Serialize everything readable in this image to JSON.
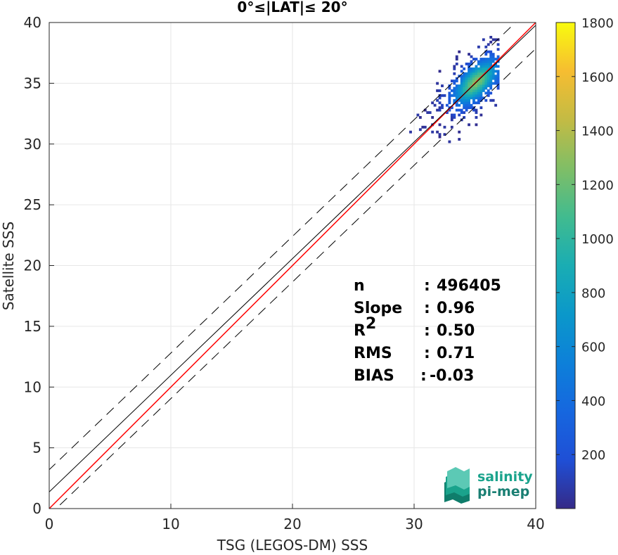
{
  "chart_data": {
    "type": "heatmap",
    "title": "0°≤|LAT|≤ 20°",
    "xlabel": "TSG (LEGOS-DM) SSS",
    "ylabel": "Satellite SSS",
    "xlim": [
      0,
      40
    ],
    "ylim": [
      0,
      40
    ],
    "xticks": [
      "0",
      "10",
      "20",
      "30",
      "40"
    ],
    "yticks": [
      "0",
      "5",
      "10",
      "15",
      "20",
      "25",
      "30",
      "35",
      "40"
    ],
    "grid": true,
    "density_center": [
      35,
      35
    ],
    "density_x_range": [
      28,
      37
    ],
    "density_y_range": [
      27.5,
      39.5
    ],
    "lines": [
      {
        "name": "one-to-one",
        "color": "#ff0000",
        "style": "solid",
        "slope": 1.0,
        "intercept": 0.0
      },
      {
        "name": "regression",
        "color": "#000000",
        "style": "solid",
        "slope": 0.96,
        "intercept": 1.37
      },
      {
        "name": "upper-bound",
        "color": "#000000",
        "style": "dashed",
        "slope": 0.96,
        "intercept": 3.2
      },
      {
        "name": "lower-bound",
        "color": "#000000",
        "style": "dashed",
        "slope": 0.96,
        "intercept": -0.55
      }
    ],
    "colorbar": {
      "min": 0,
      "max": 1800,
      "ticks": [
        "200",
        "400",
        "600",
        "800",
        "1000",
        "1200",
        "1400",
        "1600",
        "1800"
      ],
      "colormap": "parula"
    },
    "stats": [
      {
        "label": "n",
        "sep": ":",
        "value": "496405"
      },
      {
        "label": "Slope",
        "sep": ":",
        "value": "0.96"
      },
      {
        "label": "R",
        "sup": "2",
        "sep": ":",
        "value": "0.50"
      },
      {
        "label": "RMS",
        "sep": ":",
        "value": "0.71"
      },
      {
        "label": "BIAS",
        "sep": ":",
        "value": "-0.03"
      }
    ]
  },
  "logo": {
    "line1": "salinity",
    "line2": "pi-mep",
    "color": "#1aa38c"
  }
}
